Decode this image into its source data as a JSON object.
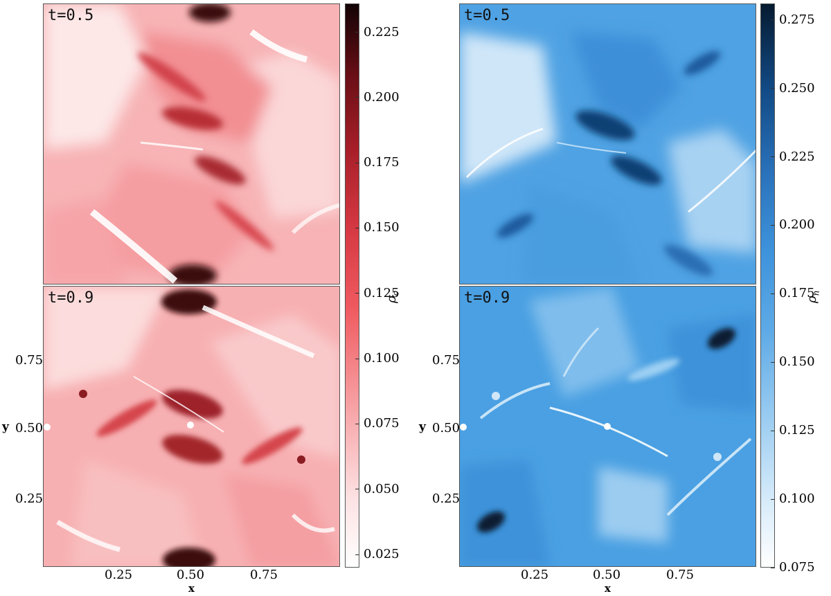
{
  "chart_data": [
    {
      "type": "heatmap",
      "quantity": "ρ_c",
      "colormap": "white-to-red-to-black",
      "colors": {
        "low": "#ffffff",
        "mid": "#ef5a60",
        "high": "#120305"
      },
      "colorbar": {
        "label": "ρ",
        "label_sub": "c",
        "range": [
          0.02,
          0.236
        ],
        "ticks": [
          "0.225",
          "0.200",
          "0.175",
          "0.150",
          "0.125",
          "0.100",
          "0.075",
          "0.050",
          "0.025"
        ],
        "tick_values": [
          0.225,
          0.2,
          0.175,
          0.15,
          0.125,
          0.1,
          0.075,
          0.05,
          0.025
        ]
      },
      "panels": [
        {
          "time_label": "t=0.5",
          "tick_labels_x": [],
          "tick_labels_y": []
        },
        {
          "time_label": "t=0.9",
          "xlabel": "x",
          "ylabel": "y",
          "tick_labels_x": [
            "0.25",
            "0.50",
            "0.75"
          ],
          "tick_values_x": [
            0.25,
            0.5,
            0.75
          ],
          "tick_labels_y": [
            "0.75",
            "0.50",
            "0.25"
          ],
          "tick_values_y": [
            0.75,
            0.5,
            0.25
          ]
        }
      ],
      "xlim": [
        0,
        1
      ],
      "ylim": [
        0,
        1
      ]
    },
    {
      "type": "heatmap",
      "quantity": "ρ_n",
      "colormap": "white-to-blue-to-black",
      "colors": {
        "low": "#ffffff",
        "mid": "#3e93dc",
        "high": "#061a30"
      },
      "colorbar": {
        "label": "ρ",
        "label_sub": "n",
        "range": [
          0.075,
          0.281
        ],
        "ticks": [
          "0.275",
          "0.250",
          "0.225",
          "0.200",
          "0.175",
          "0.150",
          "0.125",
          "0.100",
          "0.075"
        ],
        "tick_values": [
          0.275,
          0.25,
          0.225,
          0.2,
          0.175,
          0.15,
          0.125,
          0.1,
          0.075
        ]
      },
      "panels": [
        {
          "time_label": "t=0.5",
          "tick_labels_x": [],
          "tick_labels_y": []
        },
        {
          "time_label": "t=0.9",
          "xlabel": "x",
          "ylabel": "y",
          "tick_labels_x": [
            "0.25",
            "0.50",
            "0.75"
          ],
          "tick_values_x": [
            0.25,
            0.5,
            0.75
          ],
          "tick_labels_y": [
            "0.75",
            "0.50",
            "0.25"
          ],
          "tick_values_y": [
            0.75,
            0.5,
            0.25
          ]
        }
      ],
      "xlim": [
        0,
        1
      ],
      "ylim": [
        0,
        1
      ]
    }
  ]
}
